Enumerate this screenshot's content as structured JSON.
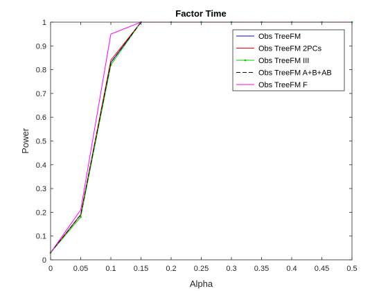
{
  "chart_data": {
    "type": "line",
    "title": "Factor Time",
    "xlabel": "Alpha",
    "ylabel": "Power",
    "xlim": [
      0,
      0.5
    ],
    "ylim": [
      0,
      1
    ],
    "xticks": [
      "0",
      "0.05",
      "0.1",
      "0.15",
      "0.2",
      "0.25",
      "0.3",
      "0.35",
      "0.4",
      "0.45",
      "0.5"
    ],
    "yticks": [
      "0",
      "0.1",
      "0.2",
      "0.3",
      "0.4",
      "0.5",
      "0.6",
      "0.7",
      "0.8",
      "0.9",
      "1"
    ],
    "legend_position": "top-right",
    "grid": false,
    "x": [
      0,
      0.05,
      0.1,
      0.15,
      0.2,
      0.25,
      0.3,
      0.35,
      0.4,
      0.45,
      0.5
    ],
    "series": [
      {
        "name": "Obs TreeFM",
        "color": "#0000ff",
        "dash": "solid",
        "marker": "none",
        "values": [
          0.03,
          0.19,
          0.83,
          1.0,
          1.0,
          1.0,
          1.0,
          1.0,
          1.0,
          1.0,
          1.0
        ]
      },
      {
        "name": "Obs TreeFM 2PCs",
        "color": "#ff0000",
        "dash": "solid",
        "marker": "none",
        "values": [
          0.03,
          0.19,
          0.84,
          1.0,
          1.0,
          1.0,
          1.0,
          1.0,
          1.0,
          1.0,
          1.0
        ]
      },
      {
        "name": "Obs TreeFM III",
        "color": "#00cc00",
        "dash": "solid",
        "marker": "point",
        "values": [
          0.03,
          0.18,
          0.82,
          1.0,
          1.0,
          1.0,
          1.0,
          1.0,
          1.0,
          1.0,
          1.0
        ]
      },
      {
        "name": "Obs TreeFM A+B+AB",
        "color": "#000000",
        "dash": "dashed",
        "marker": "none",
        "values": [
          0.03,
          0.19,
          0.83,
          1.0,
          1.0,
          1.0,
          1.0,
          1.0,
          1.0,
          1.0,
          1.0
        ]
      },
      {
        "name": "Obs TreeFM F",
        "color": "#ff00ff",
        "dash": "solid",
        "marker": "none",
        "values": [
          0.03,
          0.21,
          0.95,
          1.0,
          1.0,
          1.0,
          1.0,
          1.0,
          1.0,
          1.0,
          1.0
        ]
      }
    ]
  }
}
